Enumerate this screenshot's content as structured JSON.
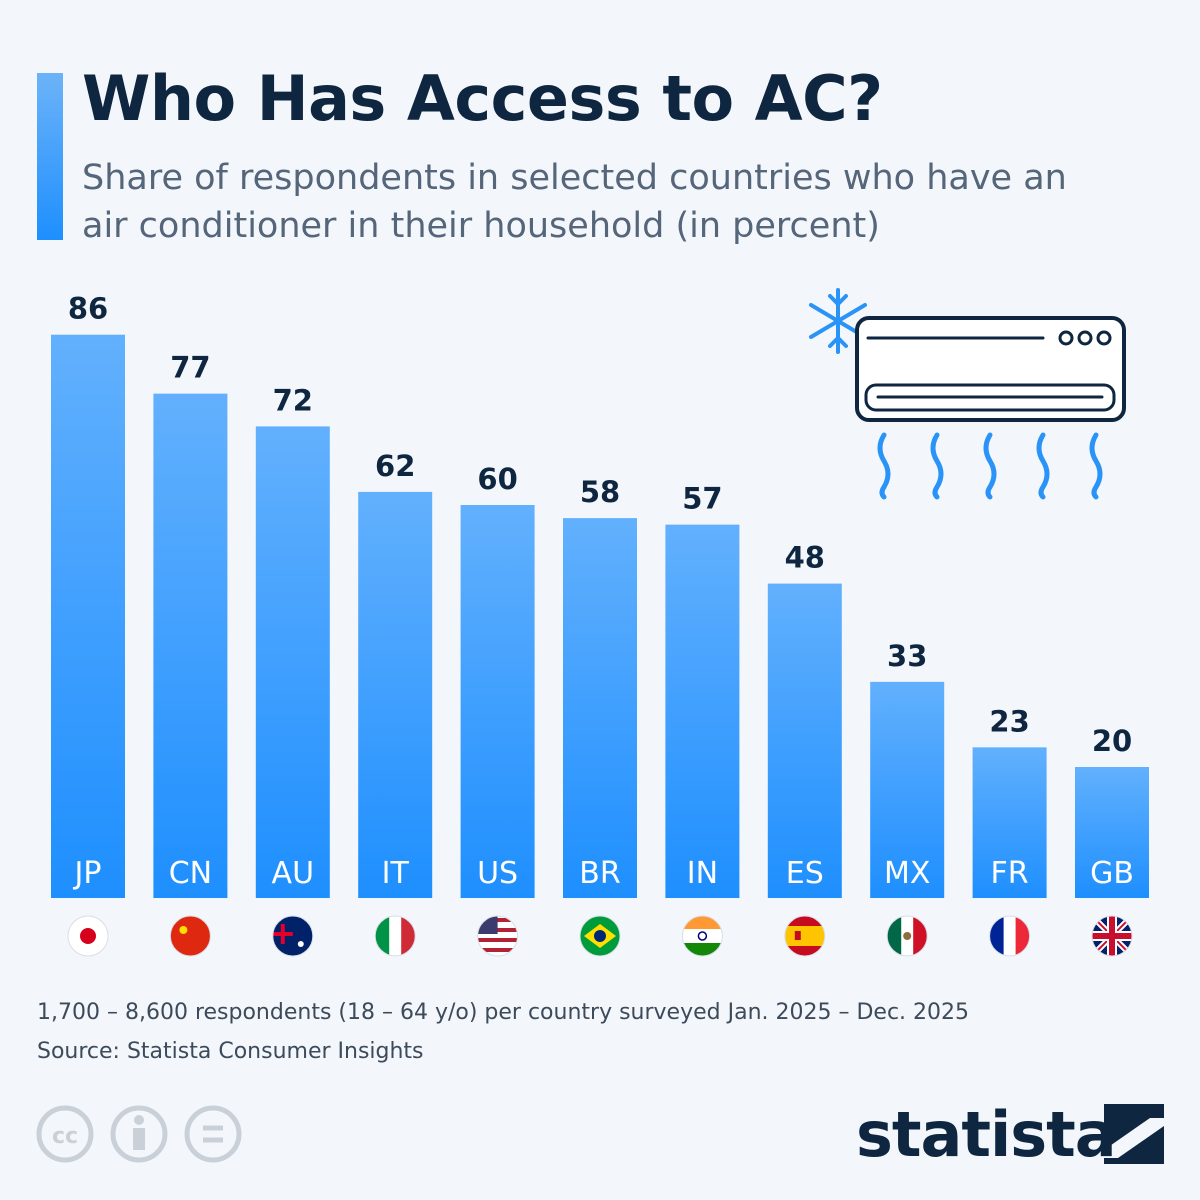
{
  "chart_data": {
    "type": "bar",
    "title": "Who Has Access to AC?",
    "subtitle": "Share of respondents in selected countries who have an air conditioner in their household (in percent)",
    "categories": [
      "JP",
      "CN",
      "AU",
      "IT",
      "US",
      "BR",
      "IN",
      "ES",
      "MX",
      "FR",
      "GB"
    ],
    "values": [
      86,
      77,
      72,
      62,
      60,
      58,
      57,
      48,
      33,
      23,
      20
    ],
    "color": "#1e8ffe",
    "note": "1,700 – 8,600 respondents (18 – 64 y/o) per country surveyed Jan. 2025 – Dec. 2025",
    "source": "Source: Statista Consumer Insights",
    "brand": "statista"
  }
}
